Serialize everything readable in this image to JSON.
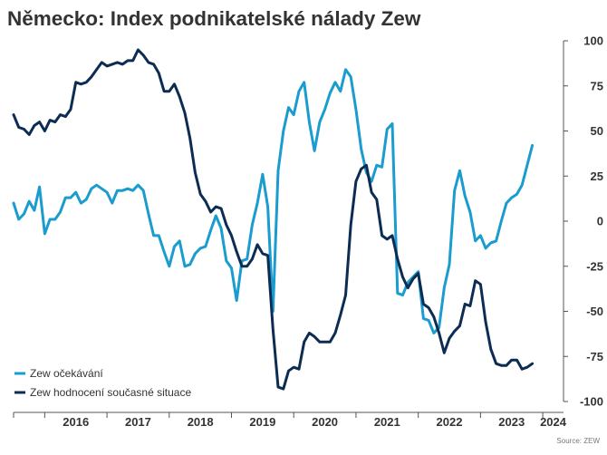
{
  "chart_data": {
    "type": "line",
    "title": "Německo: Index podnikatelské nálady Zew",
    "source": "Source: ZEW",
    "ylim": [
      -100,
      100
    ],
    "yticks": [
      100,
      75,
      50,
      25,
      0,
      -25,
      -50,
      -75,
      -100
    ],
    "xlim": [
      "2015-07",
      "2024-05"
    ],
    "xtick_labels": [
      {
        "label": "2016",
        "x": "2016-01"
      },
      {
        "label": "2017",
        "x": "2017-01"
      },
      {
        "label": "2018",
        "x": "2018-01"
      },
      {
        "label": "2019",
        "x": "2019-01"
      },
      {
        "label": "2020",
        "x": "2020-01"
      },
      {
        "label": "2021",
        "x": "2021-01"
      },
      {
        "label": "2022",
        "x": "2022-01"
      },
      {
        "label": "2023",
        "x": "2023-01"
      },
      {
        "label": "2024",
        "x": "2024-01"
      }
    ],
    "legend_position": "bottom-left",
    "grid": false,
    "series": [
      {
        "name": "Zew očekávání",
        "color": "#1a9ccf",
        "points": [
          [
            "2015-07",
            10
          ],
          [
            "2015-08",
            1
          ],
          [
            "2015-09",
            4
          ],
          [
            "2015-10",
            11
          ],
          [
            "2015-11",
            6
          ],
          [
            "2015-12",
            19
          ],
          [
            "2016-01",
            -7
          ],
          [
            "2016-02",
            1
          ],
          [
            "2016-03",
            1
          ],
          [
            "2016-04",
            5
          ],
          [
            "2016-05",
            13
          ],
          [
            "2016-06",
            13
          ],
          [
            "2016-07",
            16
          ],
          [
            "2016-08",
            10
          ],
          [
            "2016-09",
            12
          ],
          [
            "2016-10",
            18
          ],
          [
            "2016-11",
            20
          ],
          [
            "2016-12",
            18
          ],
          [
            "2017-01",
            16
          ],
          [
            "2017-02",
            10
          ],
          [
            "2017-03",
            17
          ],
          [
            "2017-04",
            17
          ],
          [
            "2017-05",
            18
          ],
          [
            "2017-06",
            17
          ],
          [
            "2017-07",
            20
          ],
          [
            "2017-08",
            17
          ],
          [
            "2017-09",
            4
          ],
          [
            "2017-10",
            -8
          ],
          [
            "2017-11",
            -8
          ],
          [
            "2017-12",
            -17
          ],
          [
            "2018-01",
            -25
          ],
          [
            "2018-02",
            -14
          ],
          [
            "2018-03",
            -11
          ],
          [
            "2018-04",
            -25
          ],
          [
            "2018-05",
            -24
          ],
          [
            "2018-06",
            -18
          ],
          [
            "2018-07",
            -15
          ],
          [
            "2018-08",
            -14
          ],
          [
            "2018-09",
            -5
          ],
          [
            "2018-10",
            3
          ],
          [
            "2018-11",
            -4
          ],
          [
            "2018-12",
            -22
          ],
          [
            "2019-01",
            -26
          ],
          [
            "2019-02",
            -44
          ],
          [
            "2019-03",
            -22
          ],
          [
            "2019-04",
            -21
          ],
          [
            "2019-05",
            -2
          ],
          [
            "2019-06",
            10
          ],
          [
            "2019-07",
            26
          ],
          [
            "2019-08",
            8
          ],
          [
            "2019-09",
            -50
          ],
          [
            "2019-10",
            28
          ],
          [
            "2019-11",
            50
          ],
          [
            "2019-12",
            63
          ],
          [
            "2020-01",
            59
          ],
          [
            "2020-02",
            72
          ],
          [
            "2020-03",
            77
          ],
          [
            "2020-04",
            55
          ],
          [
            "2020-05",
            39
          ],
          [
            "2020-06",
            55
          ],
          [
            "2020-07",
            62
          ],
          [
            "2020-08",
            71
          ],
          [
            "2020-09",
            77
          ],
          [
            "2020-10",
            72
          ],
          [
            "2020-11",
            84
          ],
          [
            "2020-12",
            80
          ],
          [
            "2021-01",
            62
          ],
          [
            "2021-02",
            40
          ],
          [
            "2021-03",
            27
          ],
          [
            "2021-04",
            22
          ],
          [
            "2021-05",
            31
          ],
          [
            "2021-06",
            30
          ],
          [
            "2021-07",
            51
          ],
          [
            "2021-08",
            54
          ],
          [
            "2021-09",
            -40
          ],
          [
            "2021-10",
            -41
          ],
          [
            "2021-11",
            -34
          ],
          [
            "2021-12",
            -31
          ],
          [
            "2022-01",
            -28
          ],
          [
            "2022-02",
            -54
          ],
          [
            "2022-03",
            -55
          ],
          [
            "2022-04",
            -62
          ],
          [
            "2022-05",
            -59
          ],
          [
            "2022-06",
            -37
          ],
          [
            "2022-07",
            -24
          ],
          [
            "2022-08",
            17
          ],
          [
            "2022-09",
            28
          ],
          [
            "2022-10",
            14
          ],
          [
            "2022-11",
            5
          ],
          [
            "2022-12",
            -11
          ],
          [
            "2023-01",
            -8
          ],
          [
            "2023-02",
            -15
          ],
          [
            "2023-03",
            -12
          ],
          [
            "2023-04",
            -11
          ],
          [
            "2023-05",
            0
          ],
          [
            "2023-06",
            10
          ],
          [
            "2023-07",
            13
          ],
          [
            "2023-08",
            15
          ],
          [
            "2023-09",
            20
          ],
          [
            "2023-10",
            31
          ],
          [
            "2023-11",
            42
          ]
        ]
      },
      {
        "name": "Zew hodnocení současné situace",
        "color": "#0d2c54",
        "points": [
          [
            "2015-07",
            59
          ],
          [
            "2015-08",
            52
          ],
          [
            "2015-09",
            51
          ],
          [
            "2015-10",
            48
          ],
          [
            "2015-11",
            53
          ],
          [
            "2015-12",
            55
          ],
          [
            "2016-01",
            50
          ],
          [
            "2016-02",
            56
          ],
          [
            "2016-03",
            55
          ],
          [
            "2016-04",
            59
          ],
          [
            "2016-05",
            58
          ],
          [
            "2016-06",
            62
          ],
          [
            "2016-07",
            77
          ],
          [
            "2016-08",
            76
          ],
          [
            "2016-09",
            77
          ],
          [
            "2016-10",
            80
          ],
          [
            "2016-11",
            84
          ],
          [
            "2016-12",
            88
          ],
          [
            "2017-01",
            86
          ],
          [
            "2017-02",
            87
          ],
          [
            "2017-03",
            88
          ],
          [
            "2017-04",
            87
          ],
          [
            "2017-05",
            89
          ],
          [
            "2017-06",
            89
          ],
          [
            "2017-07",
            95
          ],
          [
            "2017-08",
            92
          ],
          [
            "2017-09",
            88
          ],
          [
            "2017-10",
            87
          ],
          [
            "2017-11",
            82
          ],
          [
            "2017-12",
            72
          ],
          [
            "2018-01",
            72
          ],
          [
            "2018-02",
            76
          ],
          [
            "2018-03",
            69
          ],
          [
            "2018-04",
            60
          ],
          [
            "2018-05",
            46
          ],
          [
            "2018-06",
            27
          ],
          [
            "2018-07",
            15
          ],
          [
            "2018-08",
            11
          ],
          [
            "2018-09",
            5
          ],
          [
            "2018-10",
            8
          ],
          [
            "2018-11",
            7
          ],
          [
            "2018-12",
            -2
          ],
          [
            "2019-01",
            -8
          ],
          [
            "2019-02",
            -17
          ],
          [
            "2019-03",
            -25
          ],
          [
            "2019-04",
            -25
          ],
          [
            "2019-05",
            -21
          ],
          [
            "2019-06",
            -13
          ],
          [
            "2019-07",
            -18
          ],
          [
            "2019-08",
            -19
          ],
          [
            "2019-09",
            -60
          ],
          [
            "2019-10",
            -92
          ],
          [
            "2019-11",
            -93
          ],
          [
            "2019-12",
            -83
          ],
          [
            "2020-01",
            -81
          ],
          [
            "2020-02",
            -82
          ],
          [
            "2020-03",
            -67
          ],
          [
            "2020-04",
            -62
          ],
          [
            "2020-05",
            -64
          ],
          [
            "2020-06",
            -67
          ],
          [
            "2020-07",
            -67
          ],
          [
            "2020-08",
            -67
          ],
          [
            "2020-09",
            -62
          ],
          [
            "2020-10",
            -52
          ],
          [
            "2020-11",
            -41
          ],
          [
            "2020-12",
            -2
          ],
          [
            "2021-01",
            22
          ],
          [
            "2021-02",
            29
          ],
          [
            "2021-03",
            31
          ],
          [
            "2021-04",
            16
          ],
          [
            "2021-05",
            12
          ],
          [
            "2021-06",
            -8
          ],
          [
            "2021-07",
            -10
          ],
          [
            "2021-08",
            -8
          ],
          [
            "2021-09",
            -21
          ],
          [
            "2021-10",
            -31
          ],
          [
            "2021-11",
            -37
          ],
          [
            "2021-12",
            -32
          ],
          [
            "2022-01",
            -29
          ],
          [
            "2022-02",
            -46
          ],
          [
            "2022-03",
            -48
          ],
          [
            "2022-04",
            -53
          ],
          [
            "2022-05",
            -62
          ],
          [
            "2022-06",
            -73
          ],
          [
            "2022-07",
            -65
          ],
          [
            "2022-08",
            -61
          ],
          [
            "2022-09",
            -58
          ],
          [
            "2022-10",
            -46
          ],
          [
            "2022-11",
            -47
          ],
          [
            "2022-12",
            -33
          ],
          [
            "2023-01",
            -35
          ],
          [
            "2023-02",
            -56
          ],
          [
            "2023-03",
            -71
          ],
          [
            "2023-04",
            -79
          ],
          [
            "2023-05",
            -80
          ],
          [
            "2023-06",
            -80
          ],
          [
            "2023-07",
            -77
          ],
          [
            "2023-08",
            -77
          ],
          [
            "2023-09",
            -82
          ],
          [
            "2023-10",
            -81
          ],
          [
            "2023-11",
            -79
          ]
        ]
      }
    ]
  }
}
